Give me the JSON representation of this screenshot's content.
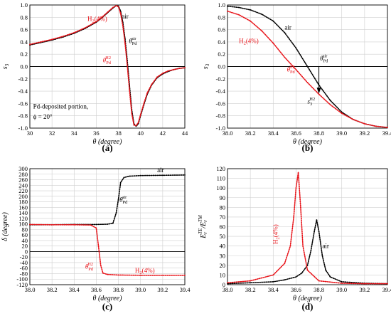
{
  "colors": {
    "air": "#000000",
    "h2": "#e8141a",
    "grid": "#cfcfcf"
  },
  "chart_data": [
    {
      "type": "scatter",
      "panel_label": "(a)",
      "xlabel": "θ (degree)",
      "ylabel": "s3",
      "xlim": [
        30,
        44
      ],
      "ylim": [
        -1.0,
        1.0
      ],
      "xticks": [
        30,
        32,
        34,
        36,
        38,
        40,
        42,
        44
      ],
      "xtick_labels": [
        "30",
        "32",
        "34",
        "36",
        "38",
        "40",
        "42",
        "44"
      ],
      "yticks": [
        -1.0,
        -0.8,
        -0.6,
        -0.4,
        -0.2,
        0.0,
        0.2,
        0.4,
        0.6,
        0.8,
        1.0
      ],
      "ytick_labels": [
        "-1.0",
        "-0.8",
        "-0.6",
        "-0.4",
        "-0.2",
        "0.0",
        "0.2",
        "0.4",
        "0.6",
        "0.8",
        "1.0"
      ],
      "grid": true,
      "series": [
        {
          "name": "air",
          "color": "#000000",
          "x": [
            30,
            31,
            32,
            33,
            34,
            35,
            36,
            36.5,
            37,
            37.5,
            37.8,
            38.0,
            38.2,
            38.4,
            38.6,
            38.8,
            39.0,
            39.2,
            39.4,
            39.6,
            39.8,
            40.0,
            40.3,
            40.6,
            41.0,
            41.5,
            42.0,
            42.5,
            43.0,
            43.5,
            44.0
          ],
          "y": [
            0.35,
            0.39,
            0.43,
            0.48,
            0.54,
            0.62,
            0.72,
            0.79,
            0.87,
            0.95,
            0.99,
            0.98,
            0.9,
            0.72,
            0.45,
            0.1,
            -0.3,
            -0.7,
            -0.93,
            -0.97,
            -0.93,
            -0.8,
            -0.62,
            -0.45,
            -0.3,
            -0.18,
            -0.12,
            -0.08,
            -0.05,
            -0.03,
            -0.02
          ]
        },
        {
          "name": "H2(4%)",
          "color": "#e8141a",
          "x": [
            30,
            31,
            32,
            33,
            34,
            35,
            36,
            36.5,
            37,
            37.5,
            37.8,
            38.0,
            38.2,
            38.4,
            38.6,
            38.8,
            39.0,
            39.2,
            39.4,
            39.6,
            39.8,
            40.0,
            40.3,
            40.6,
            41.0,
            41.5,
            42.0,
            42.5,
            43.0,
            43.5,
            44.0
          ],
          "y": [
            0.36,
            0.4,
            0.44,
            0.49,
            0.55,
            0.63,
            0.73,
            0.8,
            0.88,
            0.96,
            0.99,
            0.97,
            0.86,
            0.66,
            0.38,
            0.02,
            -0.38,
            -0.76,
            -0.95,
            -0.96,
            -0.91,
            -0.78,
            -0.6,
            -0.43,
            -0.29,
            -0.17,
            -0.11,
            -0.07,
            -0.05,
            -0.03,
            -0.02
          ]
        }
      ],
      "annotations": [
        {
          "id": "air_lab",
          "text": "air",
          "color": "#000000"
        },
        {
          "id": "h2_lab",
          "text": "H2(4%)",
          "color": "#e8141a"
        },
        {
          "id": "theta_air",
          "text": "θPd air",
          "color": "#000000"
        },
        {
          "id": "theta_h2",
          "text": "θPd H2",
          "color": "#e8141a"
        },
        {
          "id": "portion",
          "text": "Pd-deposited portion,",
          "color": "#000000"
        },
        {
          "id": "phi",
          "text": "ϕ = 20°",
          "color": "#000000"
        }
      ]
    },
    {
      "type": "scatter",
      "panel_label": "(b)",
      "xlabel": "θ (degree)",
      "ylabel": "s3",
      "xlim": [
        38.0,
        39.4
      ],
      "ylim": [
        -1.0,
        1.0
      ],
      "xticks": [
        38.0,
        38.2,
        38.4,
        38.6,
        38.8,
        39.0,
        39.2,
        39.4
      ],
      "xtick_labels": [
        "38.0",
        "38.2",
        "38.4",
        "38.6",
        "38.8",
        "39.0",
        "39.2",
        "39.4"
      ],
      "yticks": [
        -1.0,
        -0.8,
        -0.6,
        -0.4,
        -0.2,
        0.0,
        0.2,
        0.4,
        0.6,
        0.8,
        1.0
      ],
      "ytick_labels": [
        "-1.0",
        "-0.8",
        "-0.6",
        "-0.4",
        "-0.2",
        "0.0",
        "0.2",
        "0.4",
        "0.6",
        "0.8",
        "1.0"
      ],
      "grid": true,
      "series": [
        {
          "name": "air",
          "color": "#000000",
          "x": [
            38.0,
            38.1,
            38.2,
            38.3,
            38.4,
            38.5,
            38.6,
            38.7,
            38.8,
            38.9,
            39.0,
            39.1,
            39.2,
            39.3,
            39.4
          ],
          "y": [
            0.98,
            0.96,
            0.92,
            0.85,
            0.74,
            0.55,
            0.3,
            0.0,
            -0.3,
            -0.55,
            -0.74,
            -0.86,
            -0.93,
            -0.97,
            -0.99
          ]
        },
        {
          "name": "H2(4%)",
          "color": "#e8141a",
          "x": [
            38.0,
            38.1,
            38.2,
            38.3,
            38.4,
            38.5,
            38.6,
            38.7,
            38.8,
            38.9,
            39.0,
            39.1,
            39.2,
            39.3,
            39.4
          ],
          "y": [
            0.9,
            0.84,
            0.74,
            0.58,
            0.38,
            0.15,
            -0.05,
            -0.26,
            -0.45,
            -0.62,
            -0.76,
            -0.86,
            -0.93,
            -0.97,
            -0.99
          ]
        }
      ],
      "annotations": [
        {
          "id": "air_lab",
          "text": "air",
          "color": "#000000"
        },
        {
          "id": "h2_lab",
          "text": "H2(4%)",
          "color": "#e8141a"
        },
        {
          "id": "theta_air",
          "text": "θPd air",
          "color": "#000000"
        },
        {
          "id": "theta_h2",
          "text": "θPd H2",
          "color": "#e8141a"
        },
        {
          "id": "s3h2",
          "text": "s3 H2",
          "color": "#000000"
        }
      ]
    },
    {
      "type": "scatter",
      "panel_label": "(c)",
      "xlabel": "θ (degree)",
      "ylabel": "δ (degree)",
      "xlim": [
        38.0,
        39.4
      ],
      "ylim": [
        -120,
        300
      ],
      "xticks": [
        38.0,
        38.2,
        38.4,
        38.6,
        38.8,
        39.0,
        39.2,
        39.4
      ],
      "xtick_labels": [
        "38.0",
        "38.2",
        "38.4",
        "38.6",
        "38.8",
        "39.0",
        "39.2",
        "39.4"
      ],
      "yticks": [
        -120,
        -100,
        -80,
        -60,
        -40,
        -20,
        0,
        20,
        40,
        60,
        80,
        100,
        120,
        140,
        160,
        180,
        200,
        220,
        240,
        260,
        280,
        300
      ],
      "ytick_labels": [
        "-120",
        "-100",
        "-80",
        "-60",
        "-40",
        "-20",
        "0",
        "20",
        "40",
        "60",
        "80",
        "100",
        "120",
        "140",
        "160",
        "180",
        "200",
        "220",
        "240",
        "260",
        "280",
        "300"
      ],
      "grid": true,
      "series": [
        {
          "name": "air",
          "color": "#000000",
          "x": [
            38.0,
            38.2,
            38.4,
            38.6,
            38.7,
            38.75,
            38.78,
            38.8,
            38.82,
            38.85,
            38.9,
            39.0,
            39.2,
            39.4
          ],
          "y": [
            97,
            97,
            98,
            98,
            99,
            102,
            140,
            190,
            250,
            268,
            273,
            275,
            276,
            277
          ]
        },
        {
          "name": "H2(4%)",
          "color": "#e8141a",
          "x": [
            38.0,
            38.2,
            38.4,
            38.55,
            38.6,
            38.62,
            38.64,
            38.66,
            38.7,
            38.8,
            39.0,
            39.2,
            39.4
          ],
          "y": [
            98,
            97,
            97,
            96,
            85,
            20,
            -50,
            -78,
            -83,
            -85,
            -86,
            -86,
            -86
          ]
        }
      ],
      "annotations": [
        {
          "id": "air_lab",
          "text": "air",
          "color": "#000000"
        },
        {
          "id": "h2_lab",
          "text": "H2(4%)",
          "color": "#e8141a"
        },
        {
          "id": "theta_air",
          "text": "θPd air",
          "color": "#000000"
        },
        {
          "id": "theta_h2",
          "text": "θPd H2",
          "color": "#e8141a"
        }
      ]
    },
    {
      "type": "scatter",
      "panel_label": "(d)",
      "xlabel": "θ (degree)",
      "ylabel": "Er TE / Er TM",
      "xlim": [
        38.0,
        39.4
      ],
      "ylim": [
        0,
        120
      ],
      "xticks": [
        38.0,
        38.2,
        38.4,
        38.6,
        38.8,
        39.0,
        39.2,
        39.4
      ],
      "xtick_labels": [
        "38.0",
        "38.2",
        "38.4",
        "38.6",
        "38.8",
        "39.0",
        "39.2",
        "39.4"
      ],
      "yticks": [
        0,
        10,
        20,
        30,
        40,
        50,
        60,
        70,
        80,
        90,
        100,
        110,
        120
      ],
      "ytick_labels": [
        "0",
        "10",
        "20",
        "30",
        "40",
        "50",
        "60",
        "70",
        "80",
        "90",
        "100",
        "110",
        "120"
      ],
      "grid": true,
      "series": [
        {
          "name": "air",
          "color": "#000000",
          "x": [
            38.0,
            38.2,
            38.4,
            38.5,
            38.6,
            38.65,
            38.7,
            38.73,
            38.76,
            38.78,
            38.8,
            38.83,
            38.86,
            38.9,
            39.0,
            39.2,
            39.4
          ],
          "y": [
            1,
            2,
            3,
            5,
            8,
            12,
            20,
            35,
            55,
            67,
            55,
            30,
            15,
            8,
            3,
            1.5,
            1
          ]
        },
        {
          "name": "H2(4%)",
          "color": "#e8141a",
          "x": [
            38.0,
            38.2,
            38.4,
            38.5,
            38.55,
            38.58,
            38.6,
            38.62,
            38.64,
            38.66,
            38.7,
            38.8,
            39.0,
            39.2,
            39.4
          ],
          "y": [
            2,
            4,
            10,
            22,
            40,
            70,
            100,
            116,
            80,
            40,
            15,
            4,
            1.5,
            1,
            1
          ]
        }
      ],
      "annotations": [
        {
          "id": "air_lab",
          "text": "air",
          "color": "#000000"
        },
        {
          "id": "h2_lab",
          "text": "H2(4%)",
          "color": "#e8141a"
        }
      ]
    }
  ]
}
